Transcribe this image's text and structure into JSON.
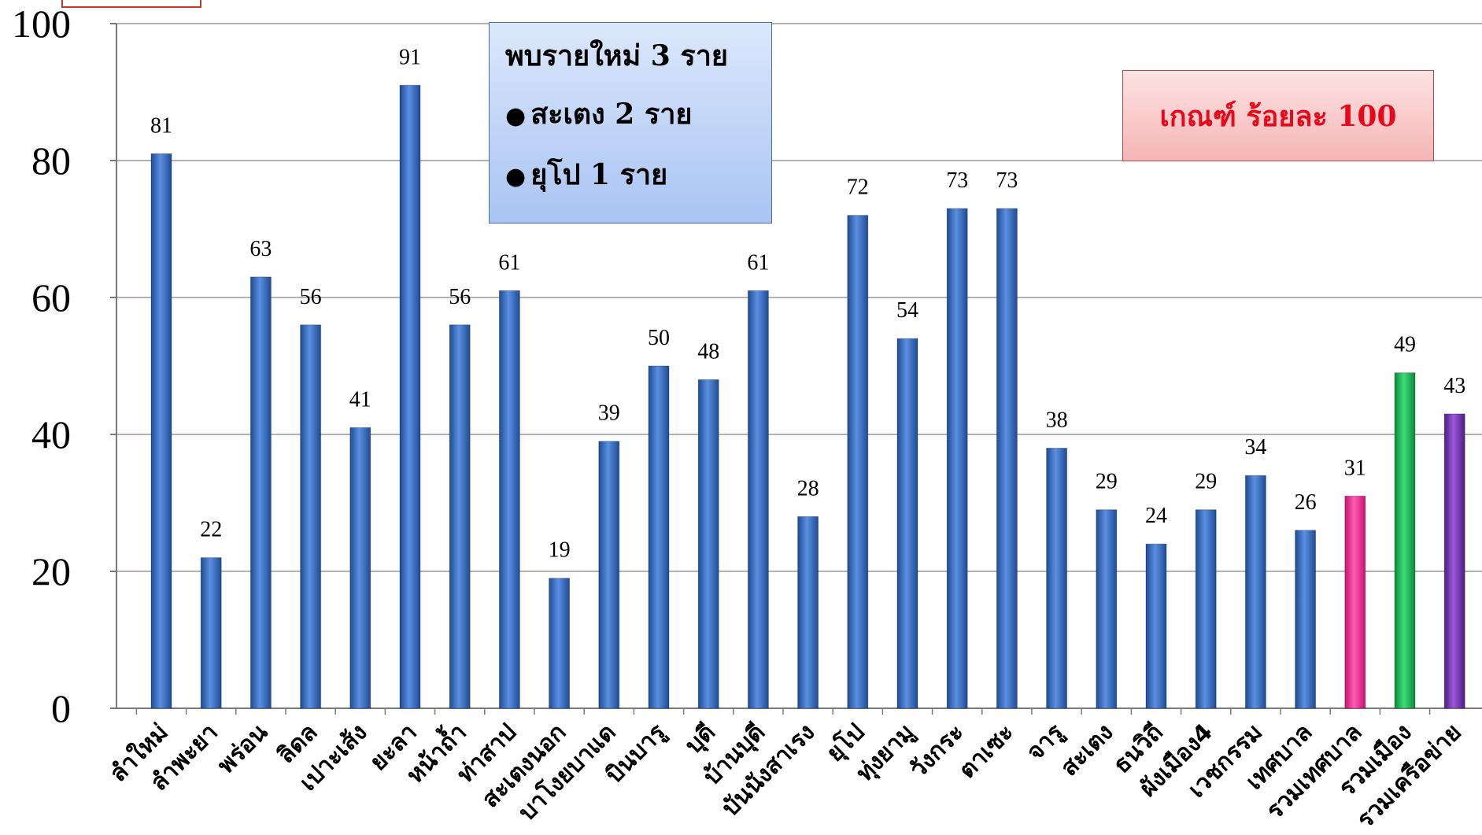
{
  "chart_data": {
    "type": "bar",
    "categories": [
      "ลำใหม่",
      "ลำพะยา",
      "พร่อน",
      "ลิดล",
      "เปาะเส้ง",
      "ยะลา",
      "หน้าถ้ำ",
      "ท่าสาป",
      "สะเตงนอก",
      "บาโงยบาแด",
      "บินบารู",
      "บุดี",
      "บ้านบุดี",
      "บันนังสาเรง",
      "ยุโป",
      "ทุ่งยามู",
      "วังกระ",
      "ตาเซะ",
      "จารู",
      "สะเตง",
      "ธนวิถี",
      "ผังเมือง4",
      "เวชกรรม",
      "เทศบาล",
      "รวมเทศบาล",
      "รวมเมือง",
      "รวมเครือข่าย"
    ],
    "values": [
      81,
      22,
      63,
      56,
      41,
      91,
      56,
      61,
      19,
      39,
      50,
      48,
      61,
      28,
      72,
      54,
      73,
      73,
      38,
      29,
      24,
      29,
      34,
      26,
      31,
      49,
      43
    ],
    "colors": [
      "#3f74c4",
      "#3f74c4",
      "#3f74c4",
      "#3f74c4",
      "#3f74c4",
      "#3f74c4",
      "#3f74c4",
      "#3f74c4",
      "#3f74c4",
      "#3f74c4",
      "#3f74c4",
      "#3f74c4",
      "#3f74c4",
      "#3f74c4",
      "#3f74c4",
      "#3f74c4",
      "#3f74c4",
      "#3f74c4",
      "#3f74c4",
      "#3f74c4",
      "#3f74c4",
      "#3f74c4",
      "#3f74c4",
      "#3f74c4",
      "#ff3aa0",
      "#1db85a",
      "#7a35b8"
    ],
    "ylim": [
      0,
      100
    ],
    "yticks": [
      0,
      20,
      40,
      60,
      80,
      100
    ],
    "grid": true,
    "title": "",
    "xlabel": "",
    "ylabel": ""
  },
  "annotations": {
    "note_title": "พบรายใหม่ 3 ราย",
    "note_items": [
      "สะเตง 2 ราย",
      "ยุโป 1 ราย"
    ],
    "criteria": "เกณฑ์  ร้อยละ 100"
  }
}
